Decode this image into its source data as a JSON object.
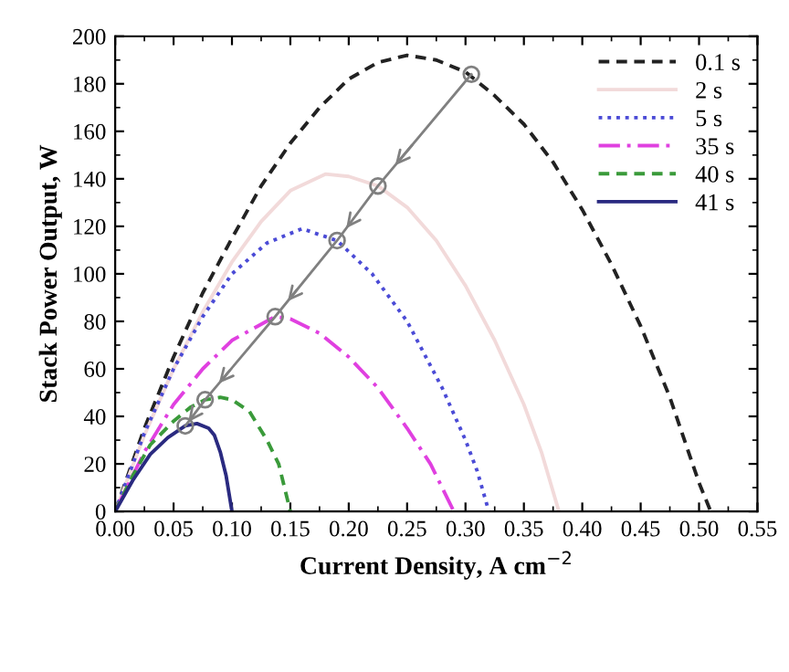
{
  "chart_data": {
    "type": "line",
    "xlabel": "Current Density, A cm$^{−2}$",
    "ylabel": "Stack Power Output, W",
    "xlim": [
      0,
      0.55
    ],
    "ylim": [
      0,
      200
    ],
    "xticks": [
      {
        "value": 0,
        "label": "0.00"
      },
      {
        "value": 0.05,
        "label": "0.05"
      },
      {
        "value": 0.1,
        "label": "0.10"
      },
      {
        "value": 0.15,
        "label": "0.15"
      },
      {
        "value": 0.2,
        "label": "0.20"
      },
      {
        "value": 0.25,
        "label": "0.25"
      },
      {
        "value": 0.3,
        "label": "0.30"
      },
      {
        "value": 0.35,
        "label": "0.35"
      },
      {
        "value": 0.4,
        "label": "0.40"
      },
      {
        "value": 0.45,
        "label": "0.45"
      },
      {
        "value": 0.5,
        "label": "0.50"
      },
      {
        "value": 0.55,
        "label": "0.55"
      }
    ],
    "yticks": [
      0,
      20,
      40,
      60,
      80,
      100,
      120,
      140,
      160,
      180,
      200
    ],
    "grid": false,
    "legend": "top right",
    "marker": "none",
    "series": [
      {
        "name": "0.1 s",
        "color": "#222222",
        "line_style": "dashed",
        "x": [
          0,
          0.025,
          0.05,
          0.075,
          0.1,
          0.125,
          0.15,
          0.175,
          0.2,
          0.225,
          0.25,
          0.275,
          0.3,
          0.325,
          0.35,
          0.375,
          0.4,
          0.425,
          0.45,
          0.475,
          0.5,
          0.51
        ],
        "values": [
          0,
          35,
          65,
          92,
          115,
          137,
          155,
          170,
          182,
          189,
          192,
          190,
          185,
          175,
          163,
          147,
          127,
          104,
          78,
          48,
          12,
          0
        ]
      },
      {
        "name": "2 s",
        "color": "#f2dada",
        "line_style": "solid",
        "x": [
          0,
          0.025,
          0.05,
          0.075,
          0.1,
          0.125,
          0.15,
          0.18,
          0.2,
          0.225,
          0.25,
          0.275,
          0.3,
          0.325,
          0.35,
          0.365,
          0.38
        ],
        "values": [
          0,
          32,
          60,
          84,
          105,
          122,
          135,
          142,
          141,
          137,
          128,
          114,
          95,
          72,
          45,
          25,
          0
        ]
      },
      {
        "name": "5 s",
        "color": "#4b4bd6",
        "line_style": "dotted",
        "x": [
          0,
          0.025,
          0.05,
          0.075,
          0.1,
          0.13,
          0.16,
          0.19,
          0.22,
          0.25,
          0.28,
          0.3,
          0.31,
          0.32
        ],
        "values": [
          0,
          33,
          60,
          82,
          100,
          113,
          119,
          114,
          100,
          80,
          52,
          30,
          17,
          0
        ]
      },
      {
        "name": "35 s",
        "color": "#e040e0",
        "line_style": "dashdot",
        "x": [
          0,
          0.025,
          0.05,
          0.075,
          0.1,
          0.137,
          0.15,
          0.175,
          0.2,
          0.225,
          0.25,
          0.27,
          0.29
        ],
        "values": [
          0,
          25,
          45,
          60,
          72,
          82,
          81,
          75,
          65,
          52,
          35,
          20,
          0
        ]
      },
      {
        "name": "40 s",
        "color": "#3a9a3a",
        "line_style": "dashed",
        "x": [
          0,
          0.015,
          0.03,
          0.05,
          0.065,
          0.077,
          0.09,
          0.1,
          0.115,
          0.13,
          0.14,
          0.15
        ],
        "values": [
          0,
          15,
          28,
          38,
          44,
          47,
          48,
          47,
          42,
          30,
          20,
          0
        ]
      },
      {
        "name": "41 s",
        "color": "#2a2a80",
        "line_style": "solid",
        "x": [
          0,
          0.015,
          0.03,
          0.045,
          0.06,
          0.07,
          0.08,
          0.085,
          0.09,
          0.095,
          0.1
        ],
        "values": [
          0,
          13,
          24,
          31,
          36,
          37,
          35,
          32,
          25,
          15,
          0
        ]
      },
      {
        "color": "#808080",
        "line_style": "solid",
        "marker": "circle",
        "x": [
          0.305,
          0.225,
          0.19,
          0.137,
          0.077,
          0.06
        ],
        "values": [
          184,
          137,
          114,
          82,
          47,
          36
        ]
      }
    ]
  }
}
